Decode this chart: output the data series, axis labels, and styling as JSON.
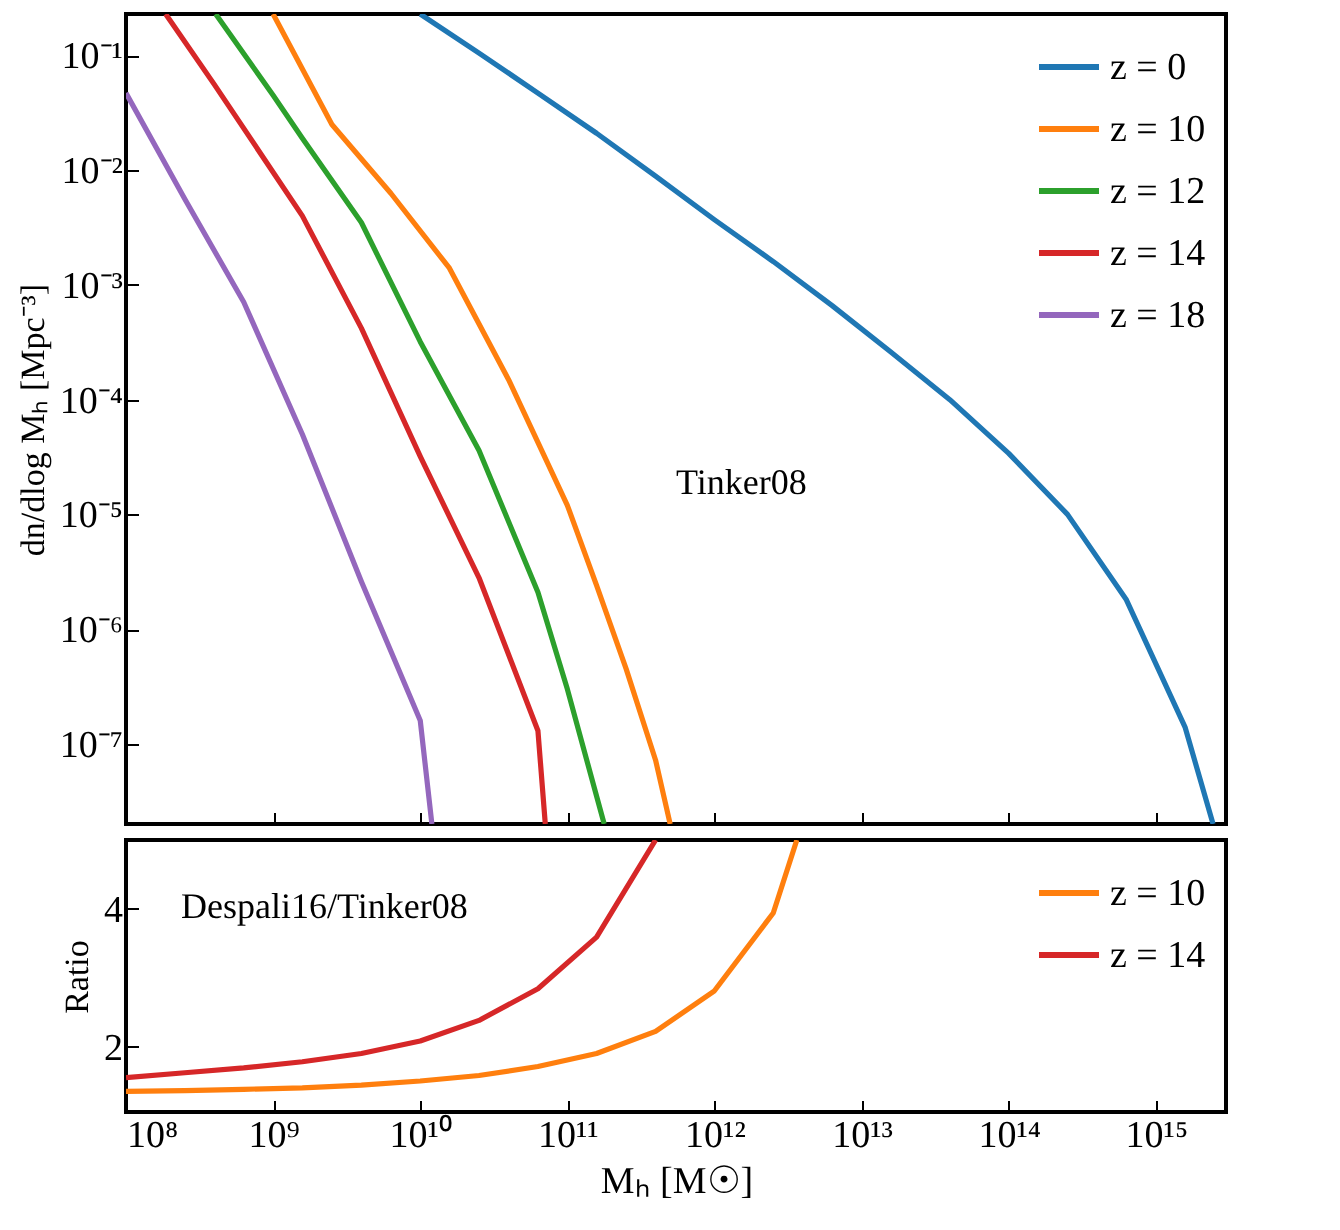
{
  "chart_data": [
    {
      "type": "line",
      "ylabel": "dn/dlog Mₕ [Mpc⁻³]",
      "log": "xy",
      "grid": false,
      "legend": "top right",
      "tick_labels": "y",
      "xlim": [
        100000000.0,
        3000000000000000.0
      ],
      "xticks": [
        100000000.0,
        1000000000.0,
        10000000000.0,
        100000000000.0,
        1000000000000.0,
        10000000000000.0,
        100000000000000.0,
        1000000000000000.0
      ],
      "ylim": [
        2e-08,
        0.23
      ],
      "yticks": [
        {
          "value": 1e-07,
          "label": "10⁻⁷"
        },
        {
          "value": 1e-06,
          "label": "10⁻⁶"
        },
        {
          "value": 1e-05,
          "label": "10⁻⁵"
        },
        {
          "value": 0.0001,
          "label": "10⁻⁴"
        },
        {
          "value": 0.001,
          "label": "10⁻³"
        },
        {
          "value": 0.01,
          "label": "10⁻²"
        },
        {
          "value": 0.1,
          "label": "10⁻¹"
        }
      ],
      "annotations": [
        "Tinker08"
      ],
      "series": [
        {
          "name": "z = 0",
          "color": "#1f77b4",
          "x": [
            10000000000.0,
            25100000000.0,
            63100000000.0,
            158000000000.0,
            398000000000.0,
            1000000000000.0,
            2510000000000.0,
            6310000000000.0,
            15800000000000.0,
            39800000000000.0,
            100000000000000.0,
            251000000000000.0,
            631000000000000.0,
            1580000000000000.0,
            2450000000000000.0
          ],
          "values": [
            0.23,
            0.105,
            0.047,
            0.021,
            0.0089,
            0.0037,
            0.0016,
            0.00066,
            0.00026,
            0.0001,
            3.4e-05,
            1e-05,
            1.8e-06,
            1.4e-07,
            2e-08
          ]
        },
        {
          "name": "z = 10",
          "color": "#ff7f0e",
          "x": [
            1000000000.0,
            2510000000.0,
            6310000000.0,
            15800000000.0,
            39800000000.0,
            100000000000.0,
            158000000000.0,
            251000000000.0,
            398000000000.0,
            500000000000.0
          ],
          "values": [
            0.23,
            0.025,
            0.0063,
            0.0014,
            0.00015,
            1.2e-05,
            2.4e-06,
            4.5e-07,
            7.2e-08,
            2e-08
          ]
        },
        {
          "name": "z = 12",
          "color": "#2ca02c",
          "x": [
            407000000.0,
            1000000000.0,
            1580000000.0,
            3980000000.0,
            10000000000.0,
            25100000000.0,
            63100000000.0,
            100000000000.0,
            178000000000.0
          ],
          "values": [
            0.23,
            0.045,
            0.019,
            0.0035,
            0.00032,
            3.6e-05,
            2.1e-06,
            3e-07,
            2e-08
          ]
        },
        {
          "name": "z = 14",
          "color": "#d62728",
          "x": [
            186000000.0,
            398000000.0,
            1580000000.0,
            3980000000.0,
            10000000000.0,
            25100000000.0,
            63100000000.0,
            70800000000.0
          ],
          "values": [
            0.23,
            0.056,
            0.004,
            0.00042,
            3.2e-05,
            2.8e-06,
            1.3e-07,
            2e-08
          ]
        },
        {
          "name": "z = 18",
          "color": "#9467bd",
          "x": [
            100000000.0,
            251000000.0,
            631000000.0,
            1580000000.0,
            3980000000.0,
            10000000000.0,
            12000000000.0
          ],
          "values": [
            0.047,
            0.0056,
            0.00071,
            5e-05,
            2.6e-06,
            1.6e-07,
            2e-08
          ]
        }
      ]
    },
    {
      "type": "line",
      "xlabel": "Mₕ [M☉]",
      "ylabel": "Ratio",
      "log": "x",
      "grid": false,
      "legend": "top right",
      "xlim": [
        100000000.0,
        3000000000000000.0
      ],
      "xticks": [
        {
          "value": 100000000.0,
          "label": "10⁸"
        },
        {
          "value": 1000000000.0,
          "label": "10⁹"
        },
        {
          "value": 10000000000.0,
          "label": "10¹⁰"
        },
        {
          "value": 100000000000.0,
          "label": "10¹¹"
        },
        {
          "value": 1000000000000.0,
          "label": "10¹²"
        },
        {
          "value": 10000000000000.0,
          "label": "10¹³"
        },
        {
          "value": 100000000000000.0,
          "label": "10¹⁴"
        },
        {
          "value": 1000000000000000.0,
          "label": "10¹⁵"
        }
      ],
      "ylim": [
        1.05,
        5
      ],
      "yticks": [
        2,
        4
      ],
      "annotations": [
        "Despali16/Tinker08"
      ],
      "series": [
        {
          "name": "z = 10",
          "color": "#ff7f0e",
          "x": [
            100000000.0,
            251000000.0,
            631000000.0,
            1580000000.0,
            3980000000.0,
            10000000000.0,
            25100000000.0,
            63100000000.0,
            158000000000.0,
            398000000000.0,
            1000000000000.0,
            2510000000000.0,
            3630000000000.0
          ],
          "values": [
            1.35,
            1.36,
            1.38,
            1.4,
            1.44,
            1.5,
            1.58,
            1.71,
            1.9,
            2.22,
            2.81,
            3.94,
            5.0
          ]
        },
        {
          "name": "z = 14",
          "color": "#d62728",
          "x": [
            100000000.0,
            251000000.0,
            631000000.0,
            1580000000.0,
            3980000000.0,
            10000000000.0,
            25100000000.0,
            63100000000.0,
            158000000000.0,
            398000000000.0
          ],
          "values": [
            1.55,
            1.62,
            1.69,
            1.78,
            1.9,
            2.08,
            2.38,
            2.84,
            3.59,
            5.0
          ]
        }
      ]
    }
  ]
}
